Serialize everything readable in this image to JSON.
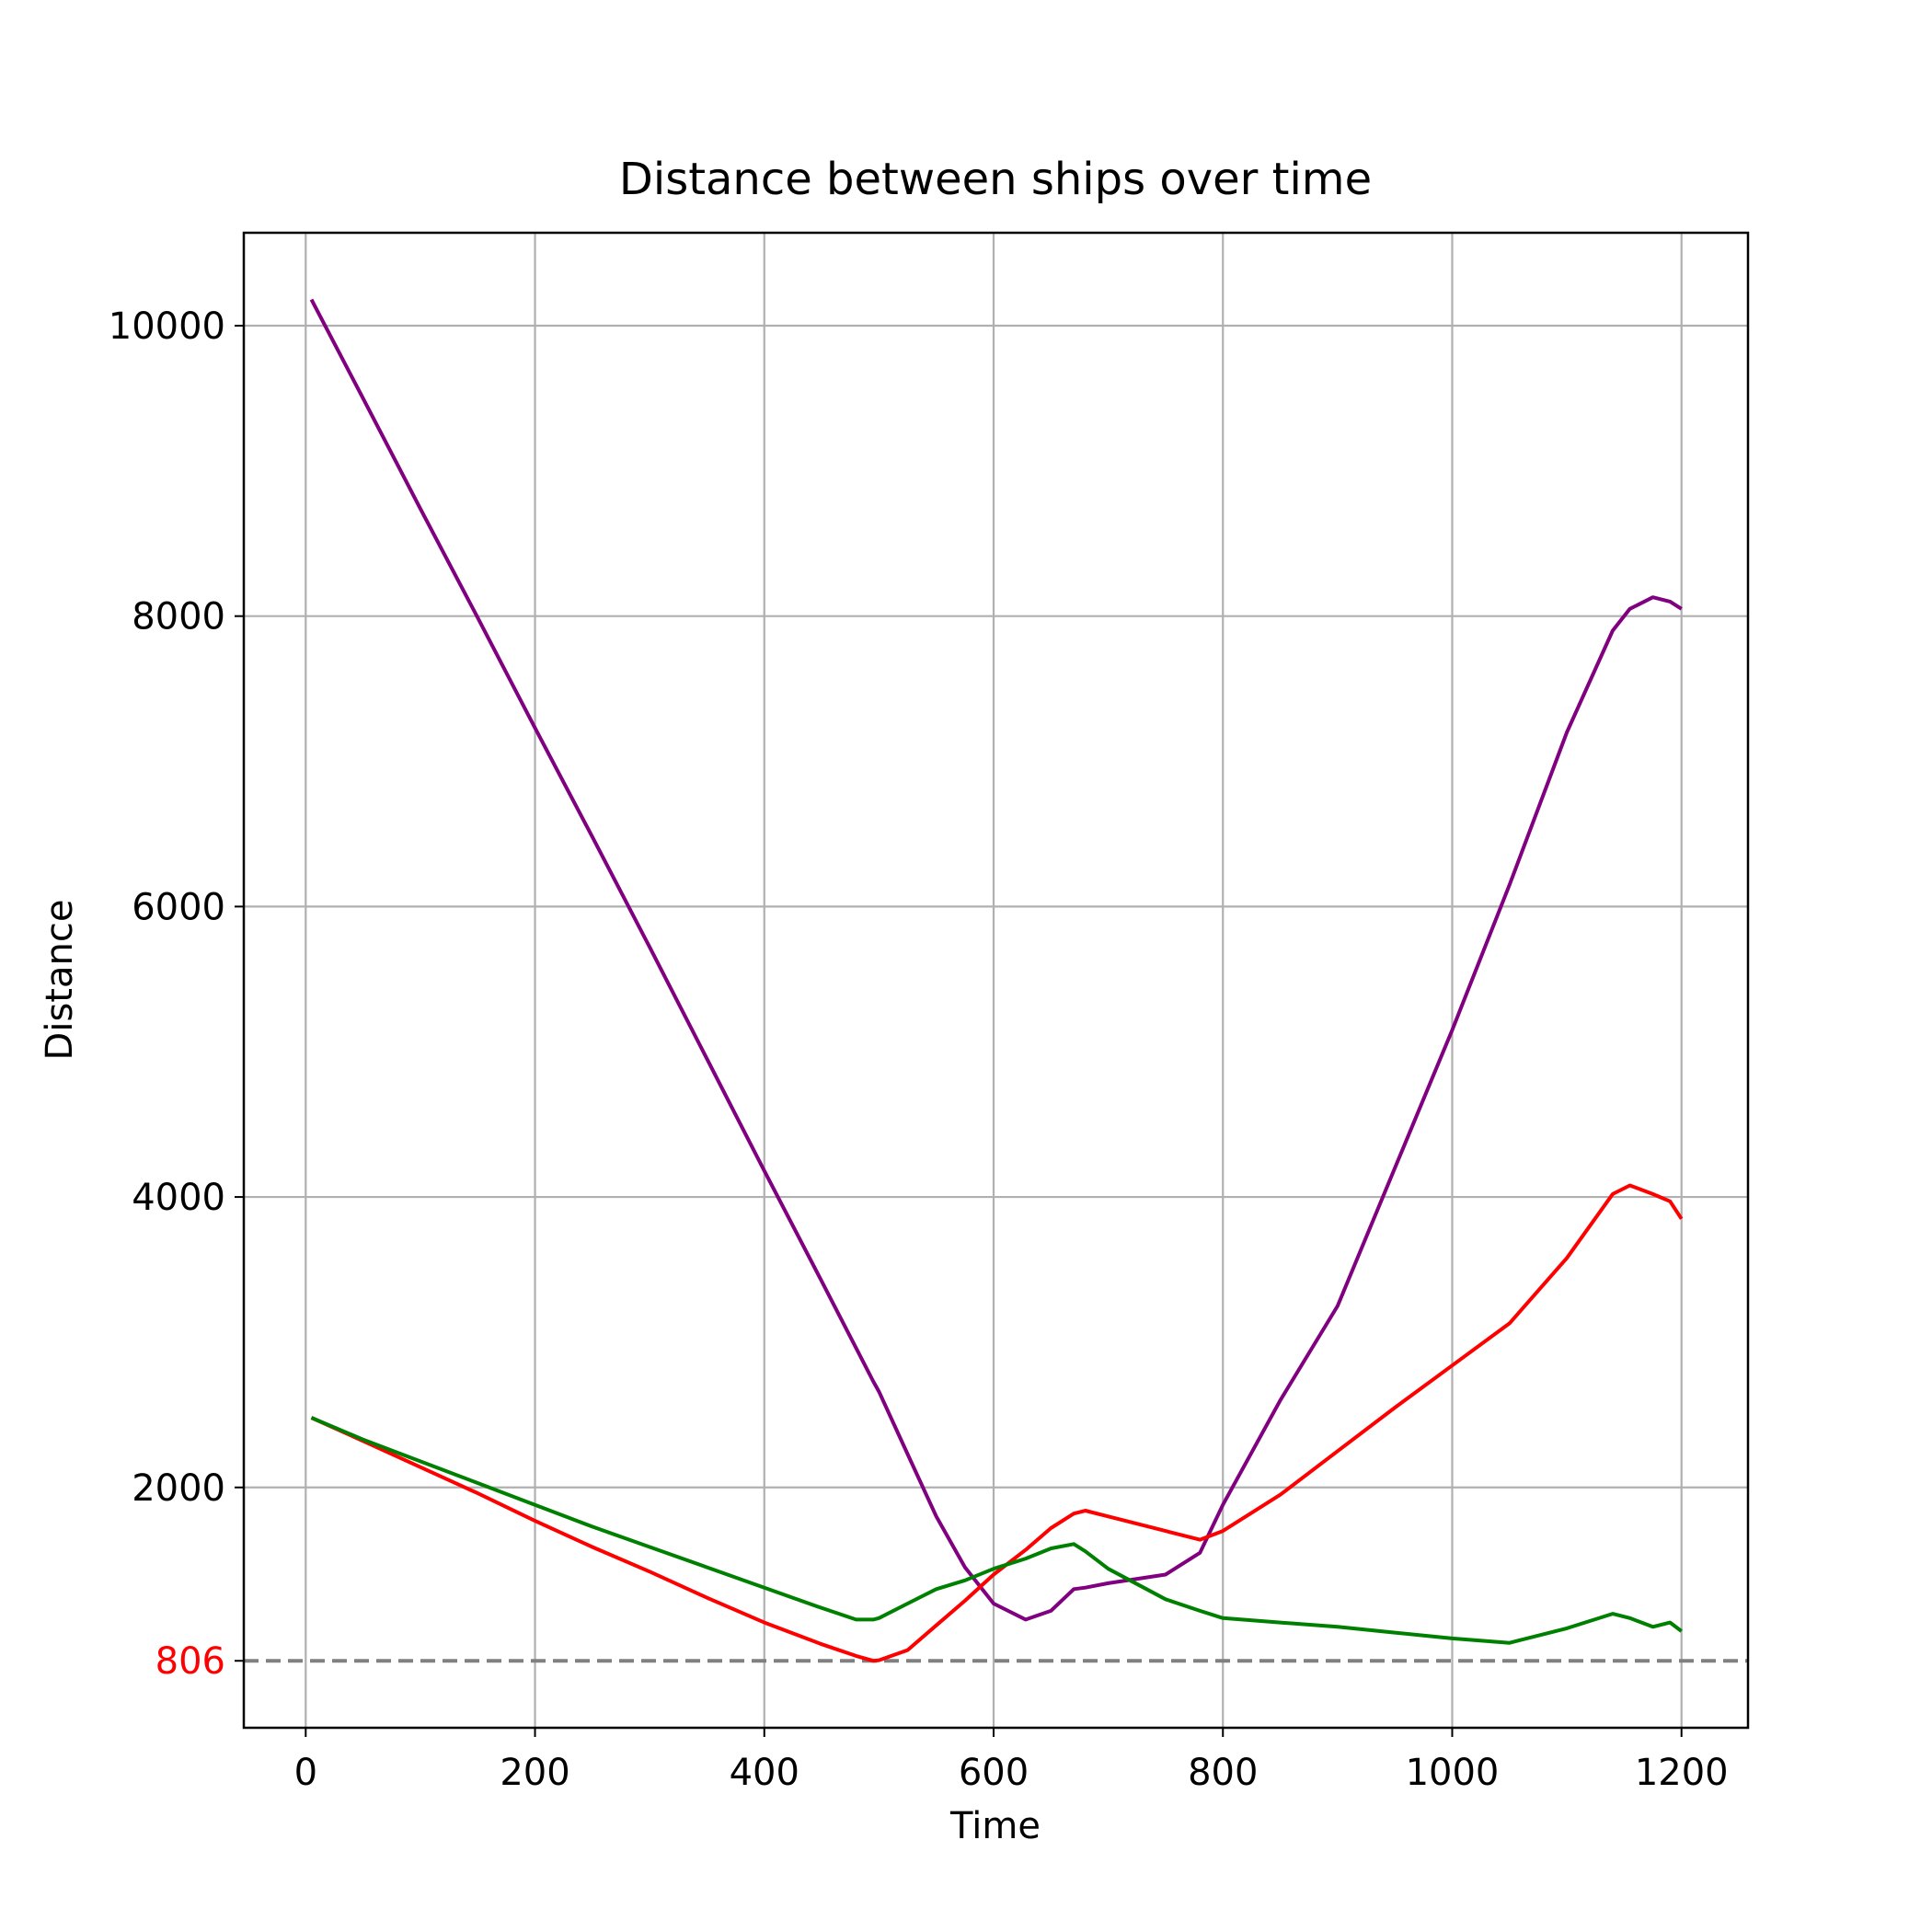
{
  "chart_data": {
    "type": "line",
    "title": "Distance between ships over time",
    "xlabel": "Time",
    "ylabel": "Distance",
    "x": [
      5,
      50,
      100,
      150,
      200,
      250,
      300,
      350,
      400,
      450,
      480,
      495,
      500,
      525,
      550,
      575,
      600,
      628,
      650,
      670,
      680,
      700,
      750,
      780,
      800,
      850,
      900,
      950,
      1000,
      1050,
      1100,
      1140,
      1155,
      1175,
      1190,
      1200
    ],
    "series": [
      {
        "color": "purple",
        "values": [
          10180,
          9500,
          8740,
          7990,
          7230,
          6480,
          5720,
          4950,
          4180,
          3420,
          2960,
          2730,
          2660,
          2230,
          1800,
          1450,
          1200,
          1090,
          1150,
          1300,
          1310,
          1340,
          1400,
          1550,
          1880,
          2600,
          3250,
          4200,
          5150,
          6150,
          7200,
          7900,
          8050,
          8130,
          8100,
          8050
        ]
      },
      {
        "color": "red",
        "values": [
          2480,
          2320,
          2140,
          1960,
          1770,
          1590,
          1420,
          1240,
          1070,
          920,
          840,
          806,
          810,
          880,
          1050,
          1220,
          1400,
          1570,
          1720,
          1820,
          1840,
          1800,
          1700,
          1640,
          1700,
          1950,
          2250,
          2550,
          2840,
          3130,
          3580,
          4020,
          4080,
          4020,
          3970,
          3850
        ]
      },
      {
        "color": "green",
        "values": [
          2480,
          2330,
          2180,
          2030,
          1880,
          1730,
          1590,
          1450,
          1310,
          1170,
          1090,
          1090,
          1100,
          1200,
          1300,
          1360,
          1440,
          1510,
          1580,
          1610,
          1560,
          1440,
          1230,
          1150,
          1100,
          1070,
          1040,
          1000,
          960,
          930,
          1030,
          1130,
          1100,
          1040,
          1070,
          1010
        ]
      }
    ],
    "hline": {
      "value": 806,
      "color": "#808080",
      "label_color": "red"
    },
    "xlim": [
      -54,
      1258
    ],
    "ylim": [
      345,
      10640
    ],
    "xticks": [
      0,
      200,
      400,
      600,
      800,
      1000,
      1200
    ],
    "yticks": [
      2000,
      4000,
      6000,
      8000,
      10000
    ],
    "grid": true
  }
}
